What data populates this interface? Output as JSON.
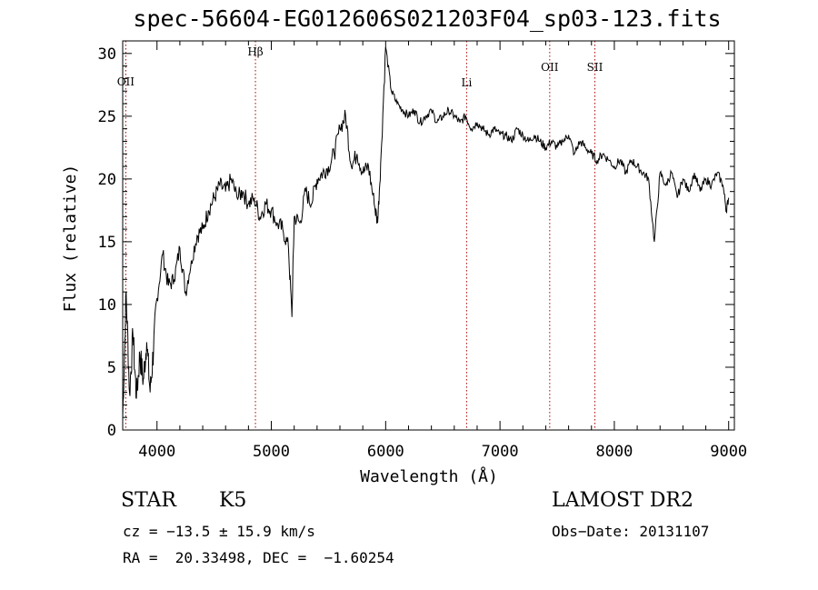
{
  "chart_data": {
    "type": "line",
    "title": "spec-56604-EG012606S021203F04_sp03-123.fits",
    "xlabel": "Wavelength (Å)",
    "ylabel": "Flux (relative)",
    "xlim": [
      3700,
      9050
    ],
    "ylim": [
      0,
      31
    ],
    "x_ticks": [
      "4000",
      "5000",
      "6000",
      "7000",
      "8000",
      "9000"
    ],
    "y_ticks": [
      "0",
      "5",
      "10",
      "15",
      "20",
      "25",
      "30"
    ],
    "grid": false,
    "line_color": "#000000",
    "marker_color": "#aa0000",
    "spectral_lines": [
      {
        "label": "OII",
        "wavelength": 3727
      },
      {
        "label": "Hβ",
        "wavelength": 4861
      },
      {
        "label": "Li",
        "wavelength": 6708
      },
      {
        "label": "OII",
        "wavelength": 7435
      },
      {
        "label": "SII",
        "wavelength": 7830
      }
    ],
    "series": [
      {
        "x": [
          3700,
          3730,
          3760,
          3790,
          3820,
          3850,
          3880,
          3910,
          3940,
          3970,
          4000,
          4050,
          4100,
          4150,
          4200,
          4250,
          4300,
          4350,
          4400,
          4450,
          4500,
          4550,
          4600,
          4650,
          4700,
          4750,
          4800,
          4850,
          4900,
          4950,
          5000,
          5050,
          5100,
          5150,
          5180,
          5200,
          5250,
          5300,
          5350,
          5400,
          5450,
          5500,
          5550,
          5600,
          5650,
          5700,
          5750,
          5800,
          5850,
          5900,
          5930,
          5960,
          6000,
          6050,
          6100,
          6150,
          6200,
          6250,
          6300,
          6350,
          6400,
          6450,
          6500,
          6550,
          6600,
          6650,
          6700,
          6750,
          6800,
          6850,
          6900,
          6950,
          7000,
          7050,
          7100,
          7150,
          7200,
          7250,
          7300,
          7350,
          7400,
          7450,
          7500,
          7550,
          7600,
          7650,
          7700,
          7750,
          7800,
          7850,
          7900,
          7950,
          8000,
          8050,
          8100,
          8150,
          8200,
          8250,
          8300,
          8350,
          8400,
          8450,
          8500,
          8550,
          8600,
          8650,
          8700,
          8750,
          8800,
          8850,
          8900,
          8950,
          8980,
          9000
        ],
        "y": [
          1.0,
          11.0,
          3.0,
          7.5,
          2.5,
          6.0,
          4.0,
          7.0,
          3.0,
          6.5,
          10.5,
          14.0,
          11.5,
          12.0,
          14.5,
          11.0,
          13.5,
          15.5,
          16.0,
          17.5,
          18.5,
          19.5,
          19.0,
          20.0,
          18.5,
          19.0,
          18.0,
          18.5,
          17.0,
          18.0,
          17.5,
          16.5,
          16.0,
          14.5,
          9.0,
          17.0,
          16.5,
          19.0,
          18.0,
          20.0,
          20.5,
          21.0,
          22.0,
          24.0,
          25.0,
          21.0,
          22.0,
          20.5,
          21.0,
          18.0,
          16.5,
          22.0,
          30.5,
          27.0,
          26.0,
          25.5,
          25.0,
          25.5,
          24.5,
          25.0,
          25.5,
          24.5,
          25.0,
          25.5,
          25.0,
          24.5,
          25.0,
          24.0,
          24.5,
          24.0,
          23.5,
          24.0,
          23.5,
          23.5,
          23.0,
          24.0,
          23.5,
          23.0,
          23.5,
          23.0,
          22.5,
          23.0,
          22.5,
          23.0,
          23.5,
          22.0,
          23.0,
          22.5,
          22.0,
          21.5,
          22.0,
          21.5,
          21.0,
          21.5,
          20.5,
          21.5,
          21.0,
          20.5,
          20.0,
          15.0,
          20.5,
          19.5,
          20.5,
          18.5,
          20.0,
          19.0,
          20.5,
          19.0,
          20.0,
          19.5,
          20.5,
          19.5,
          17.5,
          18.5
        ]
      }
    ]
  },
  "info": {
    "class_label": "STAR",
    "subclass": "K5",
    "survey": "LAMOST DR2",
    "cz": "cz = −13.5 ± 15.9 km/s",
    "obs_date": "Obs−Date: 20131107",
    "radec": "RA =  20.33498, DEC =  −1.60254"
  }
}
